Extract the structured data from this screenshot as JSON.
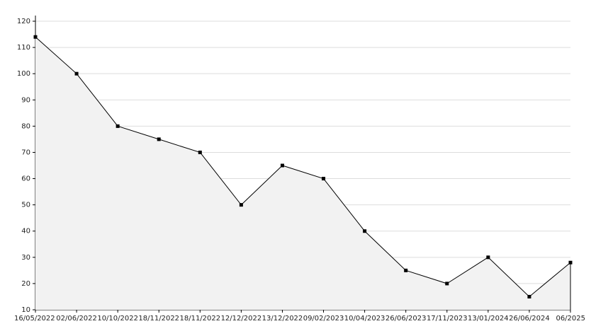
{
  "chart_data": {
    "type": "area",
    "categories": [
      "16/05/2022",
      "02/06/2022",
      "10/10/2022",
      "18/11/2022",
      "18/11/2022",
      "12/12/2022",
      "13/12/2022",
      "09/02/2023",
      "10/04/2023",
      "26/06/2023",
      "17/11/2023",
      "13/01/2024",
      "26/06/2024",
      "06/2025"
    ],
    "values": [
      114,
      100,
      80,
      75,
      70,
      50,
      65,
      60,
      40,
      25,
      20,
      30,
      15,
      28
    ],
    "color": "#000000",
    "fill": "#f2f2f2",
    "ylim": [
      10,
      120
    ],
    "yticks": [
      10,
      20,
      30,
      40,
      50,
      60,
      70,
      80,
      90,
      100,
      110,
      120
    ],
    "grid": true
  }
}
